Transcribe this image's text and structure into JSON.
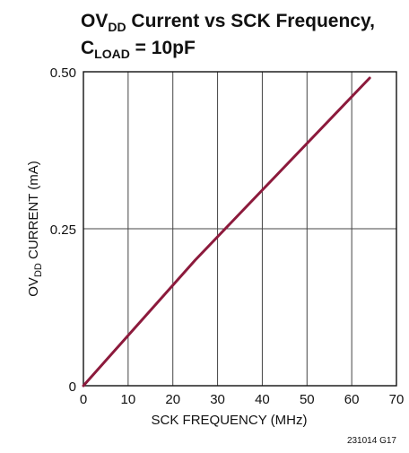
{
  "chart_data": {
    "type": "line",
    "title_lines": [
      {
        "pre": "OV",
        "sub": "DD",
        "post": " Current vs SCK Frequency,"
      },
      {
        "pre": "C",
        "sub": "LOAD",
        "post": " = 10pF"
      }
    ],
    "xlabel": "SCK FREQUENCY (MHz)",
    "ylabel": {
      "pre": "OV",
      "sub": "DD",
      "post": " CURRENT (mA)"
    },
    "xlim": [
      0,
      70
    ],
    "ylim": [
      0,
      0.5
    ],
    "x_ticks": [
      0,
      10,
      20,
      30,
      40,
      50,
      60,
      70
    ],
    "x_tick_labels": [
      "0",
      "10",
      "20",
      "30",
      "40",
      "50",
      "60",
      "70"
    ],
    "y_ticks": [
      0,
      0.25,
      0.5
    ],
    "y_tick_labels": [
      "0",
      "0.25",
      "0.50"
    ],
    "grid": true,
    "series": [
      {
        "color": "#8c1a3c",
        "x": [
          0,
          25,
          64
        ],
        "y": [
          0,
          0.2,
          0.49
        ]
      }
    ],
    "figure_id": "231014 G17"
  }
}
